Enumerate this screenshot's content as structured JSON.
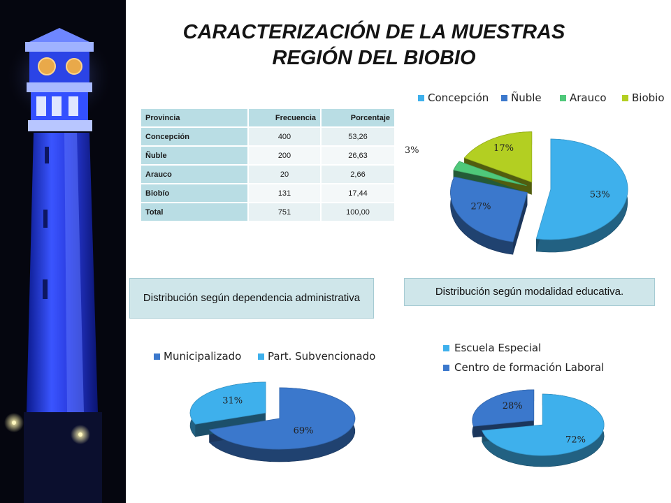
{
  "slide": {
    "title_line1": "CARACTERIZACIÓN DE LA MUESTRAS",
    "title_line2": "REGIÓN DEL BIOBIO"
  },
  "table": {
    "headers": [
      "Provincia",
      "Frecuencia",
      "Porcentaje"
    ],
    "rows": [
      [
        "Concepción",
        "400",
        "53,26"
      ],
      [
        "Ñuble",
        "200",
        "26,63"
      ],
      [
        "Arauco",
        "20",
        "2,66"
      ],
      [
        "Biobío",
        "131",
        "17,44"
      ],
      [
        "Total",
        "751",
        "100,00"
      ]
    ]
  },
  "captions": {
    "dependencia": "Distribución según dependencia administrativa",
    "modalidad": "Distribución según modalidad educativa."
  },
  "colors": {
    "concepcion": "#3eb0ec",
    "nuble": "#3b78cc",
    "arauco": "#4fc87a",
    "biobio": "#b3cf22"
  },
  "chart_data": [
    {
      "type": "pie",
      "legend_position": "top",
      "categories": [
        "Concepción",
        "Ñuble",
        "Arauco",
        "Biobio"
      ],
      "values": [
        53,
        27,
        3,
        17
      ],
      "labels": [
        "53%",
        "27%",
        "3%",
        "17%"
      ],
      "colors": [
        "#3eb0ec",
        "#3b78cc",
        "#4fc87a",
        "#b3cf22"
      ]
    },
    {
      "type": "pie",
      "legend_position": "top",
      "categories": [
        "Municipalizado",
        "Part. Subvencionado"
      ],
      "values": [
        69,
        31
      ],
      "labels": [
        "69%",
        "31%"
      ],
      "colors": [
        "#3b78cc",
        "#3eb0ec"
      ]
    },
    {
      "type": "pie",
      "legend_position": "top",
      "categories": [
        "Escuela Especial",
        "Centro de formación Laboral"
      ],
      "values": [
        72,
        28
      ],
      "labels": [
        "72%",
        "28%"
      ],
      "colors": [
        "#3eb0ec",
        "#3b78cc"
      ]
    }
  ]
}
